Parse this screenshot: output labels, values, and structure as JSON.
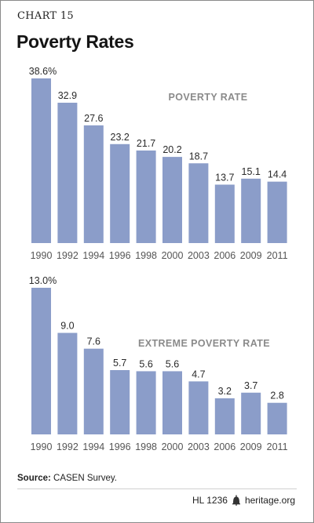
{
  "header": {
    "chart_number": "CHART 15",
    "title": "Poverty Rates"
  },
  "chart_data": [
    {
      "type": "bar",
      "title": "POVERTY RATE",
      "categories": [
        "1990",
        "1992",
        "1994",
        "1996",
        "1998",
        "2000",
        "2003",
        "2006",
        "2009",
        "2011"
      ],
      "values": [
        38.6,
        32.9,
        27.6,
        23.2,
        21.7,
        20.2,
        18.7,
        13.7,
        15.1,
        14.4
      ],
      "data_labels": [
        "38.6%",
        "32.9",
        "27.6",
        "23.2",
        "21.7",
        "20.2",
        "18.7",
        "13.7",
        "15.1",
        "14.4"
      ],
      "ylim": [
        0,
        38.6
      ],
      "grid": false,
      "bar_color": "#8b9dc9"
    },
    {
      "type": "bar",
      "title": "EXTREME POVERTY RATE",
      "categories": [
        "1990",
        "1992",
        "1994",
        "1996",
        "1998",
        "2000",
        "2003",
        "2006",
        "2009",
        "2011"
      ],
      "values": [
        13.0,
        9.0,
        7.6,
        5.7,
        5.6,
        5.6,
        4.7,
        3.2,
        3.7,
        2.8
      ],
      "data_labels": [
        "13.0%",
        "9.0",
        "7.6",
        "5.7",
        "5.6",
        "5.6",
        "4.7",
        "3.2",
        "3.7",
        "2.8"
      ],
      "ylim": [
        0,
        13.0
      ],
      "grid": false,
      "bar_color": "#8b9dc9"
    }
  ],
  "source": {
    "label": "Source:",
    "text": "CASEN Survey."
  },
  "footer": {
    "code": "HL 1236",
    "site": "heritage.org"
  }
}
